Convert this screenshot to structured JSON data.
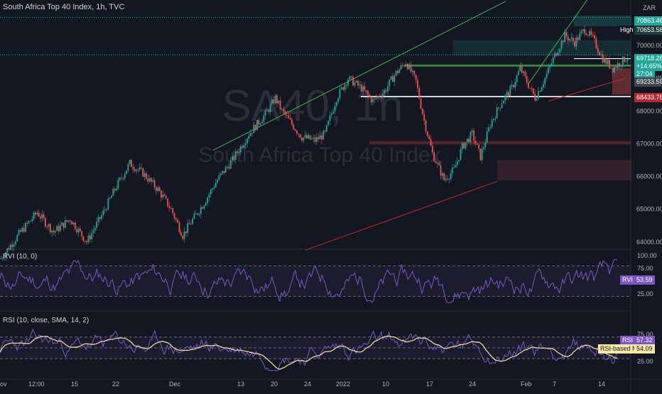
{
  "header": {
    "title": "South Africa Top 40 Index, 1h, TVC",
    "currency": "ZAR"
  },
  "watermark": {
    "ticker": "SA40, 1h",
    "name": "South Africa Top 40 Index"
  },
  "price_scale": {
    "ticks": [
      "70000.00",
      "69000.00",
      "68000.00",
      "67000.00",
      "66000.00",
      "65000.00",
      "64000.00"
    ],
    "tags": {
      "top": "70863.46",
      "high_label": "High",
      "high": "70653.58",
      "last": "69718.28",
      "change": "+14.65%",
      "countdown": "27:04",
      "low_zone": "69233.59",
      "support": "68433.78"
    }
  },
  "rvi": {
    "label": "RVI (10, 0)",
    "ticks": [
      "100.00",
      "75.00",
      "25.00"
    ],
    "name": "RVI",
    "value": "53.59"
  },
  "rsi": {
    "label": "RSI (10, close, SMA, 14, 2)",
    "ticks": [
      "75.00",
      "25.00"
    ],
    "name": "RSI",
    "value": "57.32",
    "ma_name": "RSI-based MA",
    "ma_value": "54.09"
  },
  "time_axis": {
    "labels": [
      "ov",
      "12:00",
      "15",
      "22",
      "Dec",
      "13",
      "20",
      "24",
      "2022",
      "10",
      "17",
      "24",
      "Feb",
      "7",
      "14"
    ]
  },
  "colors": {
    "background": "#131722",
    "up": "#26a69a",
    "down": "#ef5350",
    "oscillator": "#7e57c2",
    "ma": "#f5e8a6",
    "support": "#ffffff",
    "trend_up": "#4caf50",
    "trend_down": "#c62828"
  },
  "chart_data": [
    {
      "type": "candlestick",
      "title": "South Africa Top 40 Index, 1h, TVC",
      "ylim": [
        63800,
        71000
      ],
      "x_labels": [
        "ov",
        "12:00",
        "15",
        "22",
        "Dec",
        "13",
        "20",
        "24",
        "2022",
        "10",
        "17",
        "24",
        "Feb",
        "7",
        "14"
      ],
      "path": [
        [
          0,
          63500
        ],
        [
          12,
          64300
        ],
        [
          22,
          64900
        ],
        [
          32,
          64300
        ],
        [
          42,
          64700
        ],
        [
          52,
          64000
        ],
        [
          62,
          64900
        ],
        [
          70,
          65700
        ],
        [
          78,
          66400
        ],
        [
          86,
          66100
        ],
        [
          95,
          65600
        ],
        [
          103,
          65000
        ],
        [
          110,
          64200
        ],
        [
          115,
          64600
        ],
        [
          123,
          65200
        ],
        [
          131,
          65900
        ],
        [
          140,
          66500
        ],
        [
          150,
          67300
        ],
        [
          160,
          67900
        ],
        [
          166,
          68400
        ],
        [
          170,
          68000
        ],
        [
          176,
          67600
        ],
        [
          182,
          67200
        ],
        [
          190,
          67100
        ],
        [
          196,
          67300
        ],
        [
          203,
          68400
        ],
        [
          210,
          69000
        ],
        [
          218,
          68700
        ],
        [
          225,
          68300
        ],
        [
          232,
          68600
        ],
        [
          238,
          69100
        ],
        [
          245,
          69500
        ],
        [
          251,
          68900
        ],
        [
          256,
          67700
        ],
        [
          261,
          66700
        ],
        [
          268,
          65900
        ],
        [
          274,
          66200
        ],
        [
          279,
          66900
        ],
        [
          285,
          67300
        ],
        [
          290,
          66600
        ],
        [
          296,
          67600
        ],
        [
          303,
          68300
        ],
        [
          309,
          68700
        ],
        [
          314,
          69300
        ],
        [
          319,
          68800
        ],
        [
          323,
          68400
        ],
        [
          329,
          69000
        ],
        [
          335,
          69700
        ],
        [
          341,
          70300
        ],
        [
          347,
          70100
        ],
        [
          353,
          70500
        ],
        [
          358,
          70200
        ],
        [
          364,
          69600
        ],
        [
          370,
          69300
        ],
        [
          375,
          69500
        ],
        [
          380,
          69700
        ]
      ],
      "levels": [
        70863.46,
        70653.58,
        69718.28,
        69233.59,
        68433.78
      ]
    },
    {
      "type": "line",
      "series": [
        {
          "name": "RVI",
          "last": 53.59
        }
      ],
      "ylim": [
        0,
        100
      ],
      "levels": [
        80,
        20
      ]
    },
    {
      "type": "line",
      "series": [
        {
          "name": "RSI",
          "last": 57.32
        },
        {
          "name": "RSI-based MA",
          "last": 54.09
        }
      ],
      "ylim": [
        0,
        100
      ],
      "levels": [
        70,
        50,
        30
      ]
    }
  ]
}
